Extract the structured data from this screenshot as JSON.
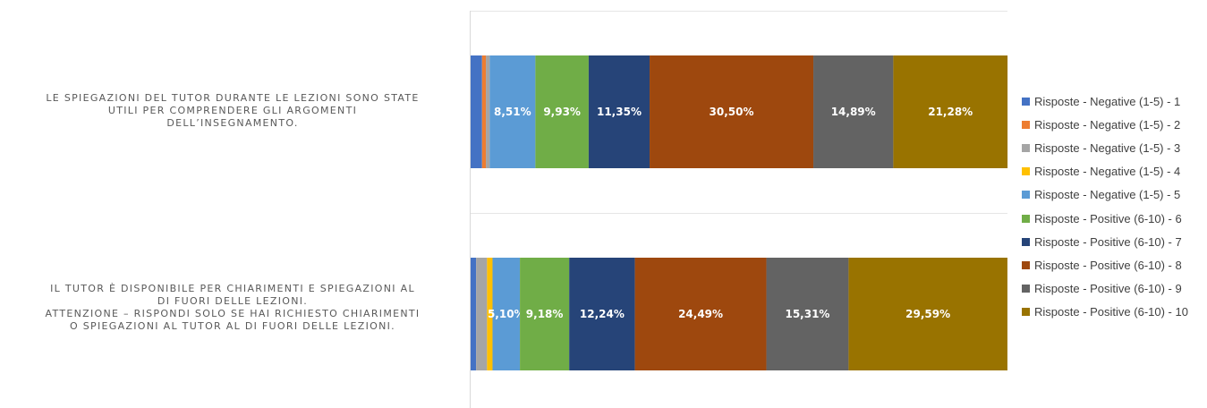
{
  "chart_data": {
    "type": "bar",
    "orientation": "horizontal",
    "stacked": "100%",
    "categories": [
      [
        "LE SPIEGAZIONI DEL TUTOR DURANTE LE LEZIONI SONO STATE",
        "UTILI PER COMPRENDERE GLI ARGOMENTI",
        "DELL’INSEGNAMENTO."
      ],
      [
        "IL TUTOR È DISPONIBILE PER CHIARIMENTI E SPIEGAZIONI AL",
        "DI FUORI DELLE LEZIONI.",
        "ATTENZIONE – RISPONDI SOLO SE HAI RICHIESTO CHIARIMENTI",
        "O SPIEGAZIONI AL TUTOR AL DI FUORI DELLE LEZIONI."
      ]
    ],
    "series": [
      {
        "name": "Risposte - Negative (1-5) - 1",
        "color": "#4472C4",
        "values": [
          2.13,
          1.02
        ],
        "labels": [
          "",
          ""
        ]
      },
      {
        "name": "Risposte - Negative (1-5) - 2",
        "color": "#ED7D31",
        "values": [
          0.71,
          0
        ],
        "labels": [
          "",
          ""
        ]
      },
      {
        "name": "Risposte - Negative (1-5) - 3",
        "color": "#A5A5A5",
        "values": [
          0.71,
          2.04
        ],
        "labels": [
          "",
          ""
        ]
      },
      {
        "name": "Risposte - Negative (1-5) - 4",
        "color": "#FFC000",
        "values": [
          0,
          1.02
        ],
        "labels": [
          "",
          ""
        ]
      },
      {
        "name": "Risposte - Negative (1-5) - 5",
        "color": "#5B9BD5",
        "values": [
          8.51,
          5.1
        ],
        "labels": [
          "8,51%",
          "5,10%"
        ]
      },
      {
        "name": "Risposte - Positive (6-10) - 6",
        "color": "#70AD47",
        "values": [
          9.93,
          9.18
        ],
        "labels": [
          "9,93%",
          "9,18%"
        ]
      },
      {
        "name": "Risposte - Positive (6-10) - 7",
        "color": "#264478",
        "values": [
          11.35,
          12.24
        ],
        "labels": [
          "11,35%",
          "12,24%"
        ]
      },
      {
        "name": "Risposte - Positive (6-10) - 8",
        "color": "#9E480E",
        "values": [
          30.5,
          24.49
        ],
        "labels": [
          "30,50%",
          "24,49%"
        ]
      },
      {
        "name": "Risposte - Positive (6-10) - 9",
        "color": "#636363",
        "values": [
          14.89,
          15.31
        ],
        "labels": [
          "14,89%",
          "15,31%"
        ]
      },
      {
        "name": "Risposte - Positive (6-10) - 10",
        "color": "#997300",
        "values": [
          21.28,
          29.59
        ],
        "labels": [
          "21,28%",
          "29,59%"
        ]
      }
    ],
    "xlim": [
      0,
      100
    ],
    "legend": "right",
    "grid": false
  }
}
